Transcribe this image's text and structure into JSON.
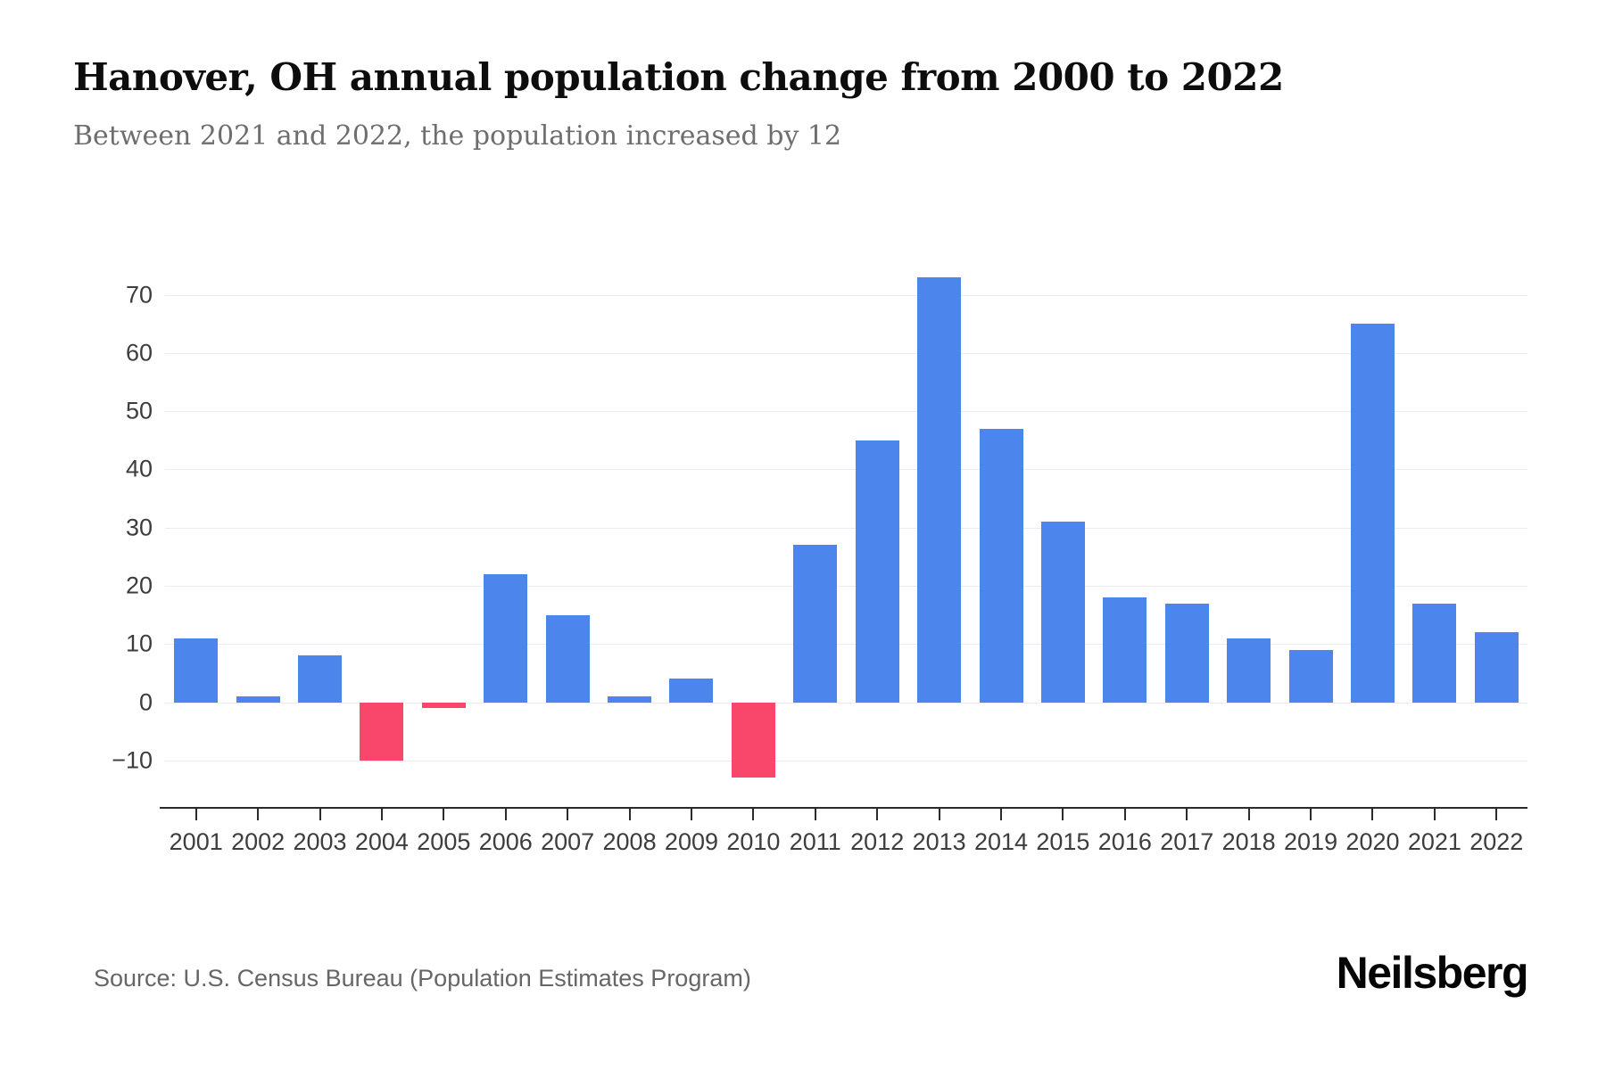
{
  "header": {
    "title": "Hanover, OH annual population change from 2000 to 2022",
    "subtitle": "Between 2021 and 2022, the population increased by 12"
  },
  "footer": {
    "source": "Source: U.S. Census Bureau (Population Estimates Program)",
    "brand": "Neilsberg"
  },
  "chart_data": {
    "type": "bar",
    "title": "Hanover, OH annual population change from 2000 to 2022",
    "subtitle": "Between 2021 and 2022, the population increased by 12",
    "categories": [
      "2001",
      "2002",
      "2003",
      "2004",
      "2005",
      "2006",
      "2007",
      "2008",
      "2009",
      "2010",
      "2011",
      "2012",
      "2013",
      "2014",
      "2015",
      "2016",
      "2017",
      "2018",
      "2019",
      "2020",
      "2021",
      "2022"
    ],
    "values": [
      11,
      1,
      8,
      -10,
      -1,
      22,
      15,
      1,
      4,
      -13,
      27,
      45,
      73,
      47,
      31,
      18,
      17,
      11,
      9,
      65,
      17,
      12
    ],
    "xlabel": "",
    "ylabel": "",
    "ylim": [
      -18,
      77
    ],
    "yticks": [
      -10,
      0,
      10,
      20,
      30,
      40,
      50,
      60,
      70
    ],
    "grid": true,
    "legend": false,
    "colors": {
      "positive": "#4C85EC",
      "negative": "#F9476B",
      "grid": "#ececec",
      "axis": "#2b2b2b"
    }
  }
}
